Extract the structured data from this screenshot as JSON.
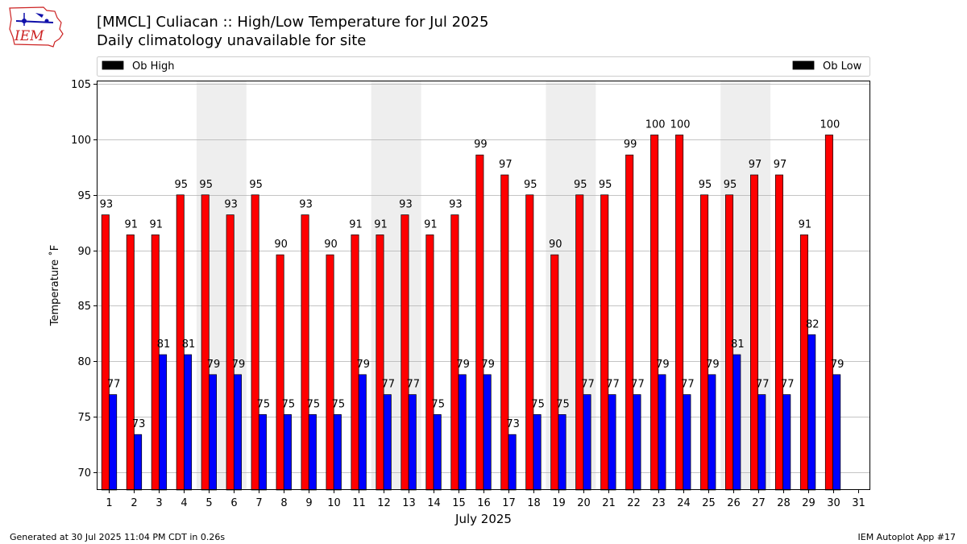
{
  "header": {
    "title": "[MMCL] Culiacan :: High/Low Temperature for Jul 2025",
    "subtitle": "Daily climatology unavailable for site"
  },
  "logo": {
    "text": "IEM",
    "icon": "iem-logo-icon"
  },
  "footer": {
    "left": "Generated at 30 Jul 2025 11:04 PM CDT in 0.26s",
    "right": "IEM Autoplot App #17"
  },
  "chart_data": {
    "type": "bar",
    "xlabel": "July 2025",
    "ylabel": "Temperature $^\\circ$F",
    "ylabel_display": "Temperature ˚F",
    "ylim": [
      68.4,
      105.3
    ],
    "yticks": [
      70,
      75,
      80,
      85,
      90,
      95,
      100,
      105
    ],
    "grid": true,
    "legend_placement": "top",
    "categories": [
      "1",
      "2",
      "3",
      "4",
      "5",
      "6",
      "7",
      "8",
      "9",
      "10",
      "11",
      "12",
      "13",
      "14",
      "15",
      "16",
      "17",
      "18",
      "19",
      "20",
      "21",
      "22",
      "23",
      "24",
      "25",
      "26",
      "27",
      "28",
      "29",
      "30",
      "31"
    ],
    "weekend_shading": [
      [
        5,
        6
      ],
      [
        12,
        13
      ],
      [
        19,
        20
      ],
      [
        26,
        27
      ]
    ],
    "series": [
      {
        "name": "Ob High",
        "color": "#ff0000",
        "labels": [
          "93",
          "91",
          "91",
          "95",
          "95",
          "93",
          "95",
          "90",
          "93",
          "90",
          "91",
          "91",
          "93",
          "91",
          "93",
          "99",
          "97",
          "95",
          "90",
          "95",
          "95",
          "99",
          "100",
          "100",
          "95",
          "95",
          "97",
          "97",
          "91",
          "100",
          null
        ],
        "values": [
          93.2,
          91.4,
          91.4,
          95.0,
          95.0,
          93.2,
          95.0,
          89.6,
          93.2,
          89.6,
          91.4,
          91.4,
          93.2,
          91.4,
          93.2,
          98.6,
          96.8,
          95.0,
          89.6,
          95.0,
          95.0,
          98.6,
          100.4,
          100.4,
          95.0,
          95.0,
          96.8,
          96.8,
          91.4,
          100.4,
          null
        ]
      },
      {
        "name": "Ob Low",
        "color": "#0000ff",
        "labels": [
          "77",
          "73",
          "81",
          "81",
          "79",
          "79",
          "75",
          "75",
          "75",
          "75",
          "79",
          "77",
          "77",
          "75",
          "79",
          "79",
          "73",
          "75",
          "75",
          "77",
          "77",
          "77",
          "79",
          "77",
          "79",
          "81",
          "77",
          "77",
          "82",
          "79",
          null
        ],
        "values": [
          77.0,
          73.4,
          80.6,
          80.6,
          78.8,
          78.8,
          75.2,
          75.2,
          75.2,
          75.2,
          78.8,
          77.0,
          77.0,
          75.2,
          78.8,
          78.8,
          73.4,
          75.2,
          75.2,
          77.0,
          77.0,
          77.0,
          78.8,
          77.0,
          78.8,
          80.6,
          77.0,
          77.0,
          82.4,
          78.8,
          null
        ]
      }
    ]
  }
}
